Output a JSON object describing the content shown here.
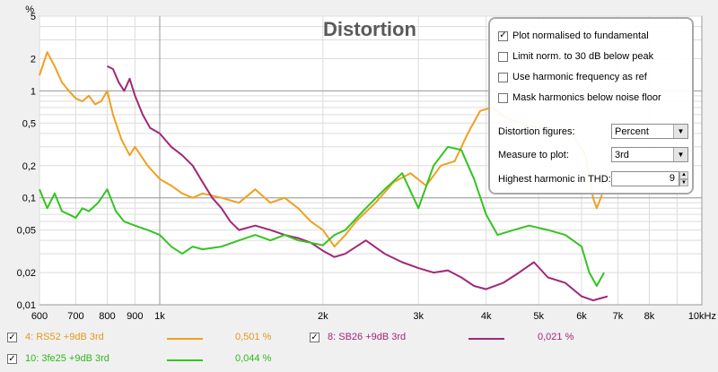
{
  "chart_data": {
    "type": "line",
    "title": "Distortion",
    "y_unit_label": "%",
    "x_scale": "log",
    "y_scale": "log",
    "xlim": [
      600,
      10000
    ],
    "ylim": [
      0.01,
      5
    ],
    "x_ticks": [
      {
        "v": 600,
        "label": "600"
      },
      {
        "v": 700,
        "label": "700"
      },
      {
        "v": 800,
        "label": "800"
      },
      {
        "v": 900,
        "label": "900"
      },
      {
        "v": 1000,
        "label": "1k"
      },
      {
        "v": 2000,
        "label": "2k"
      },
      {
        "v": 3000,
        "label": "3k"
      },
      {
        "v": 4000,
        "label": "4k"
      },
      {
        "v": 5000,
        "label": "5k"
      },
      {
        "v": 6000,
        "label": "6k"
      },
      {
        "v": 7000,
        "label": "7k"
      },
      {
        "v": 8000,
        "label": "8k"
      },
      {
        "v": 10000,
        "label": "10kHz"
      }
    ],
    "y_ticks": [
      {
        "v": 5,
        "label": "5"
      },
      {
        "v": 2,
        "label": "2"
      },
      {
        "v": 1,
        "label": "1"
      },
      {
        "v": 0.5,
        "label": "0,5"
      },
      {
        "v": 0.2,
        "label": "0,2"
      },
      {
        "v": 0.1,
        "label": "0,1"
      },
      {
        "v": 0.05,
        "label": "0,05"
      },
      {
        "v": 0.02,
        "label": "0,02"
      },
      {
        "v": 0.01,
        "label": "0,01"
      }
    ],
    "grid": true,
    "series": [
      {
        "name": "4: RS52 +9dB 3rd",
        "color": "#f0a020",
        "points": [
          [
            600,
            1.4
          ],
          [
            620,
            2.3
          ],
          [
            640,
            1.7
          ],
          [
            660,
            1.2
          ],
          [
            680,
            1.0
          ],
          [
            700,
            0.85
          ],
          [
            720,
            0.8
          ],
          [
            740,
            0.9
          ],
          [
            760,
            0.75
          ],
          [
            780,
            0.8
          ],
          [
            800,
            1.0
          ],
          [
            820,
            0.6
          ],
          [
            850,
            0.35
          ],
          [
            880,
            0.25
          ],
          [
            900,
            0.3
          ],
          [
            950,
            0.2
          ],
          [
            1000,
            0.15
          ],
          [
            1050,
            0.13
          ],
          [
            1100,
            0.11
          ],
          [
            1150,
            0.1
          ],
          [
            1200,
            0.11
          ],
          [
            1300,
            0.1
          ],
          [
            1400,
            0.09
          ],
          [
            1500,
            0.12
          ],
          [
            1600,
            0.09
          ],
          [
            1700,
            0.1
          ],
          [
            1800,
            0.08
          ],
          [
            1900,
            0.06
          ],
          [
            2000,
            0.05
          ],
          [
            2100,
            0.035
          ],
          [
            2200,
            0.045
          ],
          [
            2300,
            0.06
          ],
          [
            2500,
            0.09
          ],
          [
            2700,
            0.14
          ],
          [
            2900,
            0.17
          ],
          [
            3100,
            0.13
          ],
          [
            3300,
            0.2
          ],
          [
            3500,
            0.22
          ],
          [
            3700,
            0.4
          ],
          [
            3900,
            0.65
          ],
          [
            4100,
            0.7
          ],
          [
            4300,
            0.58
          ],
          [
            4600,
            0.5
          ],
          [
            5000,
            0.45
          ],
          [
            5400,
            0.42
          ],
          [
            5800,
            0.38
          ],
          [
            6100,
            0.25
          ],
          [
            6300,
            0.1
          ],
          [
            6400,
            0.08
          ],
          [
            6600,
            0.12
          ]
        ]
      },
      {
        "name": "8: SB26 +9dB 3rd",
        "color": "#a0287a",
        "points": [
          [
            800,
            1.7
          ],
          [
            820,
            1.6
          ],
          [
            840,
            1.2
          ],
          [
            860,
            1.0
          ],
          [
            880,
            1.3
          ],
          [
            900,
            0.9
          ],
          [
            930,
            0.6
          ],
          [
            960,
            0.45
          ],
          [
            1000,
            0.4
          ],
          [
            1050,
            0.3
          ],
          [
            1100,
            0.25
          ],
          [
            1150,
            0.2
          ],
          [
            1200,
            0.14
          ],
          [
            1250,
            0.1
          ],
          [
            1300,
            0.08
          ],
          [
            1350,
            0.06
          ],
          [
            1400,
            0.05
          ],
          [
            1500,
            0.055
          ],
          [
            1600,
            0.05
          ],
          [
            1700,
            0.045
          ],
          [
            1800,
            0.042
          ],
          [
            1900,
            0.038
          ],
          [
            2000,
            0.032
          ],
          [
            2100,
            0.028
          ],
          [
            2200,
            0.03
          ],
          [
            2400,
            0.04
          ],
          [
            2600,
            0.03
          ],
          [
            2800,
            0.025
          ],
          [
            3000,
            0.022
          ],
          [
            3200,
            0.02
          ],
          [
            3400,
            0.021
          ],
          [
            3600,
            0.018
          ],
          [
            3800,
            0.015
          ],
          [
            4000,
            0.014
          ],
          [
            4300,
            0.016
          ],
          [
            4600,
            0.02
          ],
          [
            4900,
            0.025
          ],
          [
            5200,
            0.018
          ],
          [
            5600,
            0.016
          ],
          [
            6000,
            0.012
          ],
          [
            6300,
            0.011
          ],
          [
            6700,
            0.012
          ]
        ]
      },
      {
        "name": "10: 3fe25 +9dB 3rd",
        "color": "#33c420",
        "points": [
          [
            600,
            0.12
          ],
          [
            620,
            0.08
          ],
          [
            640,
            0.11
          ],
          [
            660,
            0.075
          ],
          [
            680,
            0.07
          ],
          [
            700,
            0.065
          ],
          [
            720,
            0.08
          ],
          [
            740,
            0.075
          ],
          [
            770,
            0.09
          ],
          [
            800,
            0.12
          ],
          [
            830,
            0.075
          ],
          [
            860,
            0.06
          ],
          [
            900,
            0.055
          ],
          [
            950,
            0.05
          ],
          [
            1000,
            0.045
          ],
          [
            1050,
            0.035
          ],
          [
            1100,
            0.03
          ],
          [
            1150,
            0.035
          ],
          [
            1200,
            0.033
          ],
          [
            1300,
            0.035
          ],
          [
            1400,
            0.04
          ],
          [
            1500,
            0.045
          ],
          [
            1600,
            0.04
          ],
          [
            1700,
            0.045
          ],
          [
            1800,
            0.04
          ],
          [
            1900,
            0.038
          ],
          [
            2000,
            0.036
          ],
          [
            2100,
            0.045
          ],
          [
            2200,
            0.05
          ],
          [
            2400,
            0.08
          ],
          [
            2600,
            0.12
          ],
          [
            2800,
            0.17
          ],
          [
            3000,
            0.08
          ],
          [
            3200,
            0.2
          ],
          [
            3400,
            0.3
          ],
          [
            3600,
            0.28
          ],
          [
            3800,
            0.15
          ],
          [
            4000,
            0.07
          ],
          [
            4200,
            0.045
          ],
          [
            4500,
            0.05
          ],
          [
            4800,
            0.055
          ],
          [
            5200,
            0.05
          ],
          [
            5600,
            0.045
          ],
          [
            6000,
            0.035
          ],
          [
            6200,
            0.02
          ],
          [
            6400,
            0.015
          ],
          [
            6600,
            0.02
          ]
        ]
      }
    ]
  },
  "overlay": {
    "checkboxes": [
      {
        "label": "Plot normalised to fundamental",
        "checked": true
      },
      {
        "label": "Limit norm. to 30 dB below peak",
        "checked": false
      },
      {
        "label": "Use harmonic frequency as ref",
        "checked": false
      },
      {
        "label": "Mask harmonics below noise floor",
        "checked": false
      }
    ],
    "distortion_figures": {
      "label": "Distortion figures:",
      "value": "Percent"
    },
    "measure_to_plot": {
      "label": "Measure to plot:",
      "value": "3rd"
    },
    "highest_harmonic": {
      "label": "Highest harmonic in THD:",
      "value": "9"
    }
  },
  "legend": [
    {
      "name": "4: RS52 +9dB 3rd",
      "value": "0,501 %",
      "color": "#f0a020",
      "checked": true
    },
    {
      "name": "8: SB26 +9dB 3rd",
      "value": "0,021 %",
      "color": "#a0287a",
      "checked": true
    },
    {
      "name": "10: 3fe25 +9dB 3rd",
      "value": "0,044 %",
      "color": "#33c420",
      "checked": true
    }
  ]
}
